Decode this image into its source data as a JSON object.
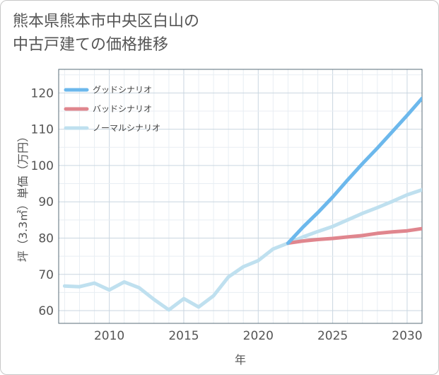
{
  "page": {
    "title_line1": "熊本県熊本市中央区白山の",
    "title_line2": "中古戸建ての価格推移"
  },
  "chart_data": {
    "type": "line",
    "title": "熊本県熊本市中央区白山の中古戸建ての価格推移",
    "xlabel": "年",
    "ylabel": "坪（3.3㎡）単価（万円）",
    "xlim": [
      2006.6,
      2031
    ],
    "ylim": [
      56.5,
      126.5
    ],
    "x_ticks": [
      2010,
      2015,
      2020,
      2025,
      2030
    ],
    "y_ticks": [
      60,
      70,
      80,
      90,
      100,
      110,
      120
    ],
    "grid": true,
    "legend_position": "top-left",
    "series": [
      {
        "name": "グッドシナリオ",
        "color": "#6cb8ec",
        "x": [
          2022,
          2023,
          2024,
          2025,
          2026,
          2027,
          2028,
          2029,
          2030,
          2031
        ],
        "y": [
          78.6,
          83.0,
          87.0,
          91.3,
          96.0,
          100.5,
          104.8,
          109.3,
          113.8,
          118.5
        ]
      },
      {
        "name": "バッドシナリオ",
        "color": "#e0868e",
        "x": [
          2022,
          2023,
          2024,
          2025,
          2026,
          2027,
          2028,
          2029,
          2030,
          2031
        ],
        "y": [
          78.6,
          79.2,
          79.6,
          79.9,
          80.3,
          80.7,
          81.3,
          81.7,
          82.0,
          82.6
        ]
      },
      {
        "name": "ノーマルシナリオ",
        "color": "#bfe0ef",
        "x": [
          2007,
          2008,
          2009,
          2010,
          2011,
          2012,
          2013,
          2014,
          2015,
          2016,
          2017,
          2018,
          2019,
          2020,
          2021,
          2022,
          2023,
          2024,
          2025,
          2026,
          2027,
          2028,
          2029,
          2030,
          2031
        ],
        "y": [
          66.8,
          66.6,
          67.6,
          65.7,
          67.9,
          66.3,
          63.1,
          60.2,
          63.3,
          61.0,
          64.1,
          69.3,
          72.1,
          73.8,
          77.0,
          78.6,
          80.3,
          81.8,
          83.2,
          85.0,
          86.8,
          88.4,
          90.1,
          91.9,
          93.3
        ]
      }
    ]
  }
}
